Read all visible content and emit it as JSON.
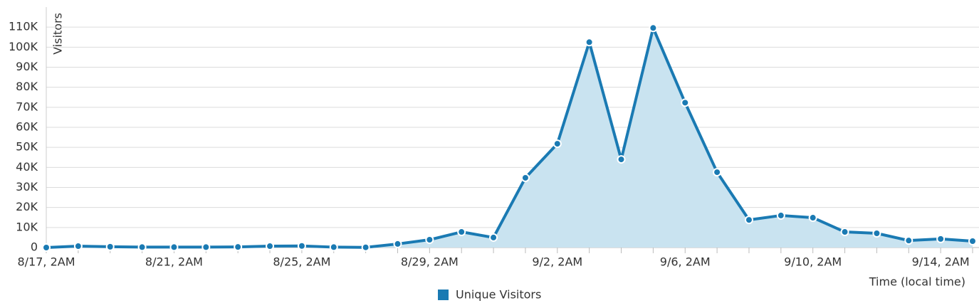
{
  "chart_data": {
    "type": "area",
    "y_label": "Visitors",
    "x_label": "Time (local time)",
    "categories": [
      "8/17, 2AM",
      null,
      null,
      null,
      "8/21, 2AM",
      null,
      null,
      null,
      "8/25, 2AM",
      null,
      null,
      null,
      "8/29, 2AM",
      null,
      null,
      null,
      "9/2, 2AM",
      null,
      null,
      null,
      "9/6, 2AM",
      null,
      null,
      null,
      "9/10, 2AM",
      null,
      null,
      null,
      "9/14, 2AM",
      null
    ],
    "series": [
      {
        "name": "Unique Visitors",
        "color": "#1a7ab3",
        "fill": "#c9e3f0",
        "values": [
          0,
          700,
          400,
          200,
          200,
          200,
          300,
          700,
          800,
          200,
          100,
          1800,
          3900,
          7800,
          5000,
          34800,
          51800,
          102500,
          44000,
          109600,
          72300,
          37600,
          13800,
          16000,
          14900,
          7800,
          7100,
          3500,
          4300,
          3200
        ]
      }
    ],
    "ylim": [
      0,
      120000
    ],
    "yticks": [
      0,
      {
        "value": 10000,
        "label": "10K"
      },
      {
        "value": 20000,
        "label": "20K"
      },
      {
        "value": 30000,
        "label": "30K"
      },
      {
        "value": 40000,
        "label": "40K"
      },
      {
        "value": 50000,
        "label": "50K"
      },
      {
        "value": 60000,
        "label": "60K"
      },
      {
        "value": 70000,
        "label": "70K"
      },
      {
        "value": 80000,
        "label": "80K"
      },
      {
        "value": 90000,
        "label": "90K"
      },
      {
        "value": 100000,
        "label": "100K"
      },
      {
        "value": 110000,
        "label": "110K"
      }
    ],
    "grid": true
  }
}
